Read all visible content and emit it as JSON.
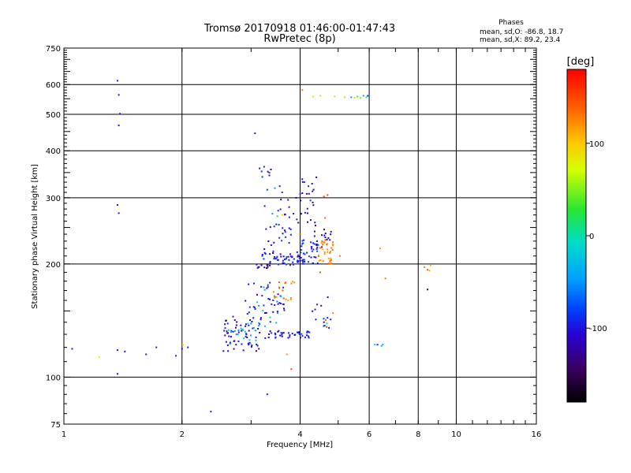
{
  "chart_data": {
    "type": "scatter",
    "title": "Tromsø 20170918 01:46:00-01:47:43",
    "subtitle": "RwPretec (8p)",
    "stats": {
      "heading": "Phases",
      "line_o": "mean, sd,O: -86.8, 18.7",
      "line_x": "mean, sd,X:  89.2, 23.4"
    },
    "xlabel": "Frequency [MHz]",
    "ylabel": "Stationary phase Virtual Height [km]",
    "x_scale": "log",
    "y_scale": "log",
    "xlim": [
      1,
      16
    ],
    "ylim": [
      75,
      750
    ],
    "x_ticks": [
      1,
      2,
      4,
      6,
      8,
      10,
      16
    ],
    "x_tick_labels": [
      "1",
      "2",
      "4",
      "6",
      "8",
      "10",
      "16"
    ],
    "y_ticks": [
      75,
      100,
      200,
      300,
      400,
      500,
      600,
      750
    ],
    "y_tick_labels": [
      "75",
      "100",
      "200",
      "300",
      "400",
      "500",
      "600",
      "750"
    ],
    "grid": true,
    "colorbar": {
      "label": "[deg]",
      "range": [
        -180,
        180
      ],
      "ticks": [
        100,
        0,
        -100
      ],
      "tick_labels": [
        "100",
        "0",
        "-100"
      ]
    },
    "points": [
      [
        1.37,
        614,
        -100
      ],
      [
        1.38,
        563,
        -100
      ],
      [
        1.39,
        502,
        -100
      ],
      [
        1.38,
        467,
        -100
      ],
      [
        3.07,
        445,
        -100
      ],
      [
        1.37,
        287,
        -100
      ],
      [
        1.38,
        273,
        -100
      ],
      [
        1.05,
        119,
        -100
      ],
      [
        1.23,
        113,
        70
      ],
      [
        1.37,
        118,
        -100
      ],
      [
        1.37,
        102,
        -100
      ],
      [
        1.43,
        117,
        -100
      ],
      [
        1.62,
        115,
        -100
      ],
      [
        1.72,
        120,
        -100
      ],
      [
        1.93,
        114,
        -100
      ],
      [
        2.0,
        119,
        -100
      ],
      [
        2.01,
        122,
        100
      ],
      [
        2.07,
        120,
        -100
      ],
      [
        2.37,
        81,
        -100
      ],
      [
        3.3,
        90,
        -100
      ],
      [
        3.7,
        115,
        120
      ],
      [
        3.8,
        105,
        150
      ],
      [
        4.05,
        580,
        130
      ],
      [
        4.32,
        557,
        60
      ],
      [
        4.5,
        560,
        60
      ],
      [
        4.9,
        558,
        60
      ],
      [
        5.2,
        555,
        100
      ],
      [
        5.4,
        555,
        -40
      ],
      [
        5.6,
        557,
        30
      ],
      [
        5.8,
        560,
        -40
      ],
      [
        5.95,
        560,
        -100
      ],
      [
        6.0,
        562,
        -40
      ],
      [
        5.9,
        555,
        20
      ],
      [
        5.7,
        553,
        50
      ],
      [
        5.5,
        553,
        90
      ],
      [
        4.4,
        340,
        -110
      ],
      [
        4.6,
        302,
        150
      ],
      [
        4.7,
        305,
        150
      ],
      [
        4.63,
        265,
        140
      ],
      [
        4.8,
        205,
        140
      ],
      [
        4.62,
        215,
        120
      ],
      [
        4.7,
        200,
        150
      ],
      [
        4.85,
        225,
        150
      ],
      [
        5.05,
        210,
        130
      ],
      [
        4.5,
        190,
        150
      ],
      [
        4.0,
        240,
        150
      ],
      [
        4.85,
        148,
        130
      ],
      [
        4.65,
        142,
        140
      ],
      [
        4.67,
        136,
        150
      ],
      [
        4.6,
        140,
        -140
      ],
      [
        4.68,
        139,
        20
      ],
      [
        6.4,
        220,
        120
      ],
      [
        6.6,
        183,
        130
      ],
      [
        6.2,
        122,
        -10
      ],
      [
        6.3,
        122,
        -100
      ],
      [
        6.45,
        121,
        -10
      ],
      [
        6.5,
        122,
        -30
      ],
      [
        8.3,
        196,
        130
      ],
      [
        8.45,
        193,
        150
      ],
      [
        8.55,
        192,
        110
      ],
      [
        8.6,
        198,
        100
      ],
      [
        8.45,
        171,
        -150
      ],
      [
        3.3,
        315,
        -80
      ],
      [
        3.45,
        318,
        -40
      ],
      [
        3.55,
        322,
        -100
      ],
      [
        3.6,
        310,
        -90
      ],
      [
        4.05,
        336,
        -110
      ],
      [
        4.1,
        330,
        -100
      ],
      [
        4.2,
        322,
        -90
      ],
      [
        4.3,
        312,
        -100
      ],
      [
        4.25,
        295,
        -80
      ],
      [
        3.25,
        285,
        -100
      ],
      [
        3.4,
        272,
        -40
      ],
      [
        3.5,
        268,
        20
      ],
      [
        3.6,
        270,
        100
      ]
    ],
    "clusters": [
      {
        "fmin": 3.05,
        "fmax": 3.35,
        "hmin": 194,
        "hmax": 200,
        "n": 12,
        "phase": -120
      },
      {
        "fmin": 3.35,
        "fmax": 4.1,
        "hmin": 197,
        "hmax": 215,
        "n": 40,
        "phase": -100
      },
      {
        "fmin": 3.9,
        "fmax": 4.45,
        "hmin": 200,
        "hmax": 232,
        "n": 35,
        "phase": -95
      },
      {
        "fmin": 4.3,
        "fmax": 4.8,
        "hmin": 220,
        "hmax": 250,
        "n": 18,
        "phase": -110
      },
      {
        "fmin": 3.2,
        "fmax": 3.8,
        "hmin": 205,
        "hmax": 260,
        "n": 28,
        "phase": -100
      },
      {
        "fmin": 3.5,
        "fmax": 4.05,
        "hmin": 240,
        "hmax": 310,
        "n": 18,
        "phase": -110
      },
      {
        "fmin": 4.05,
        "fmax": 4.4,
        "hmin": 240,
        "hmax": 335,
        "n": 15,
        "phase": -115
      },
      {
        "fmin": 4.45,
        "fmax": 4.85,
        "hmin": 200,
        "hmax": 232,
        "n": 35,
        "phase": 125
      },
      {
        "fmin": 3.25,
        "fmax": 4.3,
        "hmin": 127,
        "hmax": 133,
        "n": 40,
        "phase": -105
      },
      {
        "fmin": 2.55,
        "fmax": 3.2,
        "hmin": 117,
        "hmax": 145,
        "n": 60,
        "phase": -110
      },
      {
        "fmin": 2.6,
        "fmax": 3.1,
        "hmin": 122,
        "hmax": 140,
        "n": 20,
        "phase": -30
      },
      {
        "fmin": 2.9,
        "fmax": 3.7,
        "hmin": 140,
        "hmax": 180,
        "n": 38,
        "phase": -100
      },
      {
        "fmin": 3.4,
        "fmax": 3.9,
        "hmin": 150,
        "hmax": 182,
        "n": 18,
        "phase": 130
      },
      {
        "fmin": 3.1,
        "fmax": 3.6,
        "hmin": 135,
        "hmax": 175,
        "n": 14,
        "phase": -30
      },
      {
        "fmin": 4.3,
        "fmax": 4.8,
        "hmin": 135,
        "hmax": 165,
        "n": 12,
        "phase": -100
      },
      {
        "fmin": 3.05,
        "fmax": 3.4,
        "hmin": 340,
        "hmax": 365,
        "n": 8,
        "phase": -100
      }
    ]
  }
}
